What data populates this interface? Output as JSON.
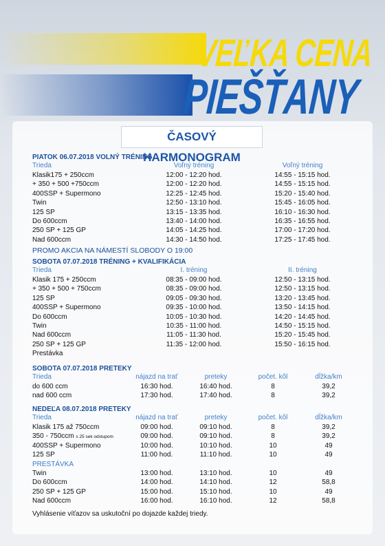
{
  "header": {
    "logo_top": "VEĽKA CENA",
    "logo_bottom": "PIEŠŤANY",
    "title": "ČASOVÝ HARMONOGRAM"
  },
  "sections": [
    {
      "title": "PIATOK 06.07.2018 VOLNÝ TRÉNING",
      "columns": [
        "Trieda",
        "Voľný tréning",
        "Voľný tréning"
      ],
      "rows": [
        [
          "Klasik175 + 250ccm",
          "12:00 - 12:20 hod.",
          "14:55 - 15:15 hod."
        ],
        [
          "+ 350 + 500 +750ccm",
          "12:00 - 12:20 hod.",
          "14:55 - 15:15 hod."
        ],
        [
          "400SSP + Supermono",
          "12:25 - 12:45 hod.",
          "15:20 - 15:40 hod."
        ],
        [
          "Twin",
          "12:50 - 13:10 hod.",
          "15:45 - 16:05 hod."
        ],
        [
          "125 SP",
          "13:15 - 13:35 hod.",
          "16:10 - 16:30 hod."
        ],
        [
          "Do 600ccm",
          "13:40 - 14:00 hod.",
          "16:35 - 16:55 hod."
        ],
        [
          "250 SP + 125 GP",
          "14:05 - 14:25 hod.",
          "17:00 - 17:20 hod."
        ],
        [
          "Nad 600ccm",
          "14:30 - 14:50 hod.",
          "17:25 - 17:45 hod."
        ]
      ],
      "note": "PROMO AKCIA NA NÁMESTÍ SLOBODY O 19:00"
    },
    {
      "title": "SOBOTA 07.07.2018 TRÉNING + KVALIFIKÁCIA",
      "columns": [
        "Trieda",
        "I. tréning",
        "II. tréning"
      ],
      "rows": [
        [
          "Klasik 175 + 250ccm",
          "08:35 - 09:00 hod.",
          "12:50 - 13:15 hod."
        ],
        [
          "+ 350 + 500 + 750ccm",
          "08:35 - 09:00 hod.",
          "12:50 - 13:15 hod."
        ],
        [
          "125 SP",
          "09:05 - 09:30 hod.",
          "13:20 - 13:45 hod."
        ],
        [
          "400SSP + Supermono",
          "09:35 - 10:00 hod.",
          "13:50 - 14:15 hod."
        ],
        [
          "Do 600ccm",
          "10:05 - 10:30 hod.",
          "14:20 - 14:45 hod."
        ],
        [
          "Twin",
          "10:35 - 11:00 hod.",
          "14:50 - 15:15 hod."
        ],
        [
          "Nad 600ccm",
          "11:05 - 11:30 hod.",
          "15:20 - 15:45 hod."
        ],
        [
          "250 SP + 125 GP",
          "11:35 - 12:00 hod.",
          "15:50 - 16:15 hod."
        ],
        [
          "Prestávka"
        ]
      ]
    },
    {
      "title": "SOBOTA 07.07.2018 PRETEKY",
      "columns": [
        "Trieda",
        "nájazd na trať",
        "preteky",
        "počet. kôl",
        "dĺžka/km"
      ],
      "rows": [
        [
          "do 600 ccm",
          "16:30 hod.",
          "16:40 hod.",
          "8",
          "39,2"
        ],
        [
          "nad 600 ccm",
          "17:30 hod.",
          "17:40 hod.",
          "8",
          "39,2"
        ]
      ]
    },
    {
      "title": "NEDEĽA 08.07.2018 PRETEKY",
      "columns": [
        "Trieda",
        "nájazd na trať",
        "preteky",
        "počet. kôl",
        "dĺžka/km"
      ],
      "rows": [
        [
          "Klasik 175 až 750ccm",
          "09:00 hod.",
          "09:10 hod.",
          "8",
          "39,2"
        ],
        [
          {
            "text": "350 - 750ccm",
            "note": "s 25 sek odstupom"
          },
          "09:00 hod.",
          "09:10 hod.",
          "8",
          "39,2"
        ],
        [
          "400SSP + Supermono",
          "10:00 hod.",
          "10:10 hod.",
          "10",
          "49"
        ],
        [
          "125 SP",
          "11:00 hod.",
          "11:10 hod.",
          "10",
          "49"
        ],
        [
          "PRESTÁVKA"
        ],
        [
          "Twin",
          "13:00 hod.",
          "13:10 hod.",
          "10",
          "49"
        ],
        [
          "Do 600ccm",
          "14:00 hod.",
          "14:10 hod.",
          "12",
          "58,8"
        ],
        [
          "250 SP + 125 GP",
          "15:00 hod.",
          "15:10 hod.",
          "10",
          "49"
        ],
        [
          "Nad 600ccm",
          "16:00 hod.",
          "16:10 hod.",
          "12",
          "58,8"
        ]
      ]
    }
  ],
  "footer": "Vyhlásenie víťazov sa uskutoční po dojazde každej triedy."
}
